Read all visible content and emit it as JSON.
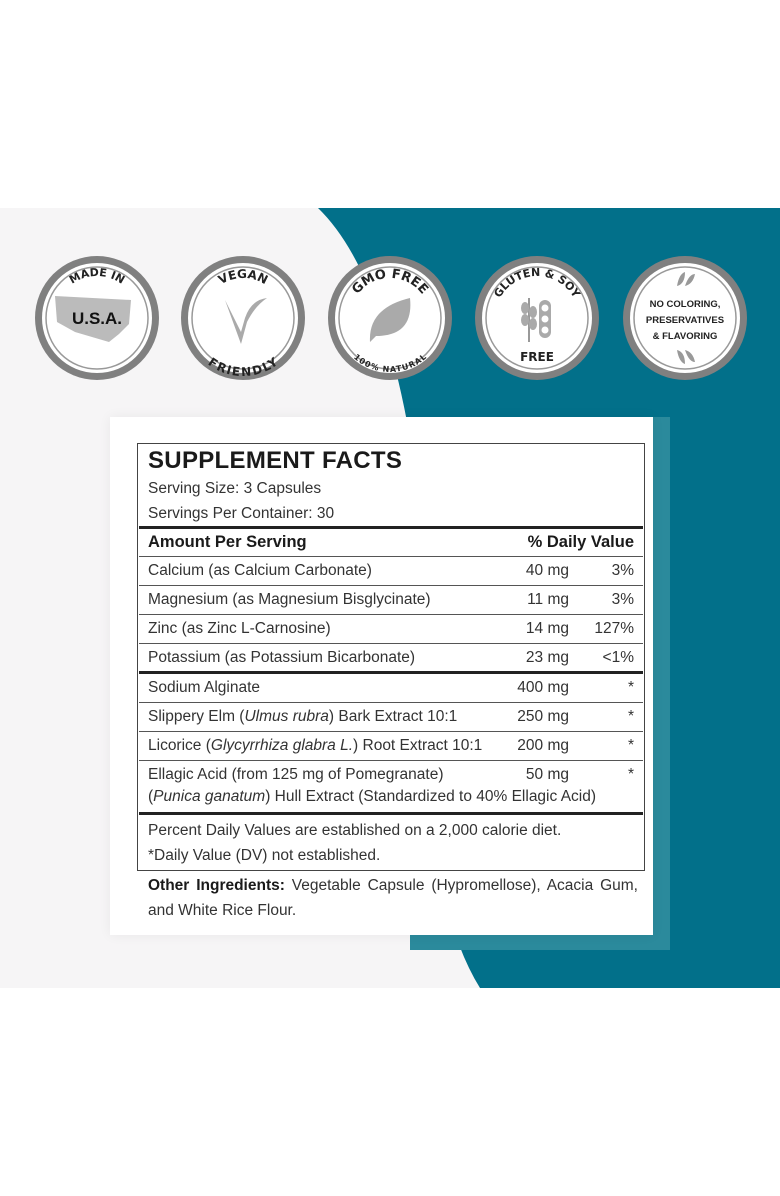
{
  "colors": {
    "teal": "#02708a",
    "teal_frame": "#2b8a9c",
    "light_bg": "#f6f5f6",
    "badge_ring": "#808080"
  },
  "badges": [
    {
      "top": "MADE IN",
      "center": "U.S.A.",
      "bottom": "",
      "icon": "usa-flag-map-icon"
    },
    {
      "top": "VEGAN",
      "center": "",
      "bottom": "FRIENDLY",
      "icon": "v-leaf-icon"
    },
    {
      "top": "GMO FREE",
      "center": "",
      "bottom": "100% NATURAL",
      "icon": "leaf-icon"
    },
    {
      "top": "GLUTEN & SOY",
      "center": "",
      "bottom": "FREE",
      "icon": "wheat-soy-icon"
    },
    {
      "top": "",
      "center_lines": [
        "NO COLORING,",
        "PRESERVATIVES",
        "& FLAVORING"
      ],
      "bottom": "",
      "icon": "leaves-icon"
    }
  ],
  "facts": {
    "title": "SUPPLEMENT FACTS",
    "serving_size": "Serving Size: 3 Capsules",
    "servings_per_container": "Servings Per Container: 30",
    "header_left": "Amount Per Serving",
    "header_right": "% Daily Value",
    "nutrients": [
      {
        "name": "Calcium (as Calcium Carbonate)",
        "amount": "40 mg",
        "dv": "3%"
      },
      {
        "name": "Magnesium (as Magnesium Bisglycinate)",
        "amount": "11 mg",
        "dv": "3%"
      },
      {
        "name": "Zinc (as Zinc L-Carnosine)",
        "amount": "14 mg",
        "dv": "127%"
      },
      {
        "name": "Potassium (as Potassium Bicarbonate)",
        "amount": "23 mg",
        "dv": "<1%"
      }
    ],
    "others": [
      {
        "name_pre": "Sodium Alginate",
        "name_it": "",
        "name_post": "",
        "amount": "400 mg",
        "dv": "*"
      },
      {
        "name_pre": "Slippery Elm (",
        "name_it": "Ulmus rubra",
        "name_post": ") Bark Extract 10:1",
        "amount": "250 mg",
        "dv": "*"
      },
      {
        "name_pre": "Licorice (",
        "name_it": "Glycyrrhiza glabra L.",
        "name_post": ") Root Extract 10:1",
        "amount": "200 mg",
        "dv": "*"
      },
      {
        "name_pre": "Ellagic Acid (from 125 mg of Pomegranate)",
        "name_it": "",
        "name_post": "",
        "amount": "50 mg",
        "dv": "*",
        "cont_pre": "(",
        "cont_it": "Punica ganatum",
        "cont_post": ") Hull Extract (Standardized to 40% Ellagic Acid)"
      }
    ],
    "footnote1": "Percent Daily Values are established on a 2,000 calorie diet.",
    "footnote2": "*Daily Value (DV) not established."
  },
  "other_ingredients": {
    "label": "Other Ingredients:",
    "text": " Vegetable Capsule (Hypromellose), Acacia Gum, and White Rice Flour."
  }
}
